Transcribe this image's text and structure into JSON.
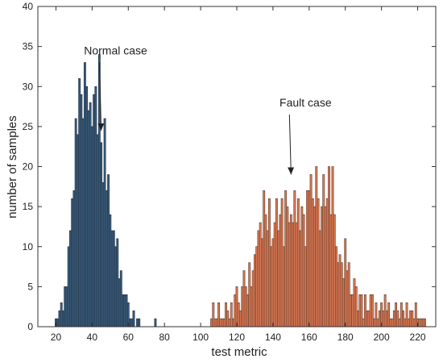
{
  "chart_data": {
    "type": "bar",
    "xlabel": "test metric",
    "ylabel": "number of samples",
    "xlim": [
      10,
      230
    ],
    "ylim": [
      0,
      40
    ],
    "xticks": [
      20,
      40,
      60,
      80,
      100,
      120,
      140,
      160,
      180,
      200,
      220
    ],
    "yticks": [
      0,
      5,
      10,
      15,
      20,
      25,
      30,
      35,
      40
    ],
    "grid": false,
    "legend": "none",
    "bin_width": 1,
    "series": [
      {
        "name": "Normal case",
        "color": "#3a5a78",
        "edge_color": "#1f3347",
        "x": [
          20,
          21,
          22,
          23,
          24,
          25,
          26,
          27,
          28,
          29,
          30,
          31,
          32,
          33,
          34,
          35,
          36,
          37,
          38,
          39,
          40,
          41,
          42,
          43,
          44,
          45,
          46,
          47,
          48,
          49,
          50,
          51,
          52,
          53,
          54,
          55,
          56,
          57,
          58,
          59,
          60,
          61,
          62,
          63,
          64,
          65,
          66,
          67,
          68,
          69,
          70,
          71,
          72,
          73,
          74,
          75
        ],
        "values": [
          1,
          1,
          2,
          3,
          2,
          5,
          5,
          10,
          12,
          16,
          17,
          26,
          24,
          31,
          29,
          26,
          33,
          30,
          27,
          28,
          25,
          29,
          30,
          24,
          34,
          23,
          18,
          26,
          17,
          19,
          14,
          12,
          12,
          10,
          11,
          6,
          7,
          4,
          4,
          4,
          3,
          1,
          1,
          2,
          0,
          1,
          1,
          0,
          0,
          0,
          0,
          0,
          0,
          0,
          0,
          1
        ]
      },
      {
        "name": "Fault case",
        "color": "#e07a55",
        "edge_color": "#5a3a28",
        "x": [
          106,
          107,
          108,
          109,
          110,
          111,
          112,
          113,
          114,
          115,
          116,
          117,
          118,
          119,
          120,
          121,
          122,
          123,
          124,
          125,
          126,
          127,
          128,
          129,
          130,
          131,
          132,
          133,
          134,
          135,
          136,
          137,
          138,
          139,
          140,
          141,
          142,
          143,
          144,
          145,
          146,
          147,
          148,
          149,
          150,
          151,
          152,
          153,
          154,
          155,
          156,
          157,
          158,
          159,
          160,
          161,
          162,
          163,
          164,
          165,
          166,
          167,
          168,
          169,
          170,
          171,
          172,
          173,
          174,
          175,
          176,
          177,
          178,
          179,
          180,
          181,
          182,
          183,
          184,
          185,
          186,
          187,
          188,
          189,
          190,
          191,
          192,
          193,
          194,
          195,
          196,
          197,
          198,
          199,
          200,
          201,
          202,
          203,
          204,
          205,
          206,
          207,
          208,
          209,
          210,
          211,
          212,
          213,
          214,
          215,
          216,
          217,
          218,
          219,
          220,
          221,
          222,
          223,
          224
        ],
        "values": [
          1,
          3,
          1,
          1,
          3,
          1,
          1,
          1,
          3,
          2,
          1,
          3,
          1,
          4,
          5,
          3,
          2,
          5,
          7,
          5,
          4,
          8,
          5,
          7,
          9,
          10,
          12,
          13,
          11,
          17,
          14,
          12,
          16,
          10,
          11,
          13,
          16,
          12,
          14,
          16,
          10,
          17,
          15,
          13,
          14,
          13,
          17,
          13,
          16,
          12,
          15,
          14,
          10,
          17,
          17,
          19,
          16,
          15,
          20,
          16,
          12,
          15,
          19,
          15,
          16,
          20,
          14,
          20,
          14,
          10,
          8,
          9,
          8,
          6,
          11,
          7,
          8,
          4,
          4,
          6,
          5,
          2,
          4,
          4,
          1,
          4,
          2,
          2,
          4,
          4,
          1,
          3,
          1,
          2,
          3,
          2,
          4,
          2,
          3,
          1,
          1,
          2,
          3,
          2,
          1,
          3,
          2,
          1,
          3,
          1,
          2,
          2,
          1,
          3,
          1,
          1,
          1,
          1,
          1
        ]
      }
    ],
    "annotations": [
      {
        "text": "Normal case",
        "x": 53,
        "y": 34,
        "arrow_to": [
          45,
          24.5
        ]
      },
      {
        "text": "Fault case",
        "x": 158,
        "y": 27.5,
        "arrow_to": [
          150,
          19
        ]
      }
    ]
  }
}
